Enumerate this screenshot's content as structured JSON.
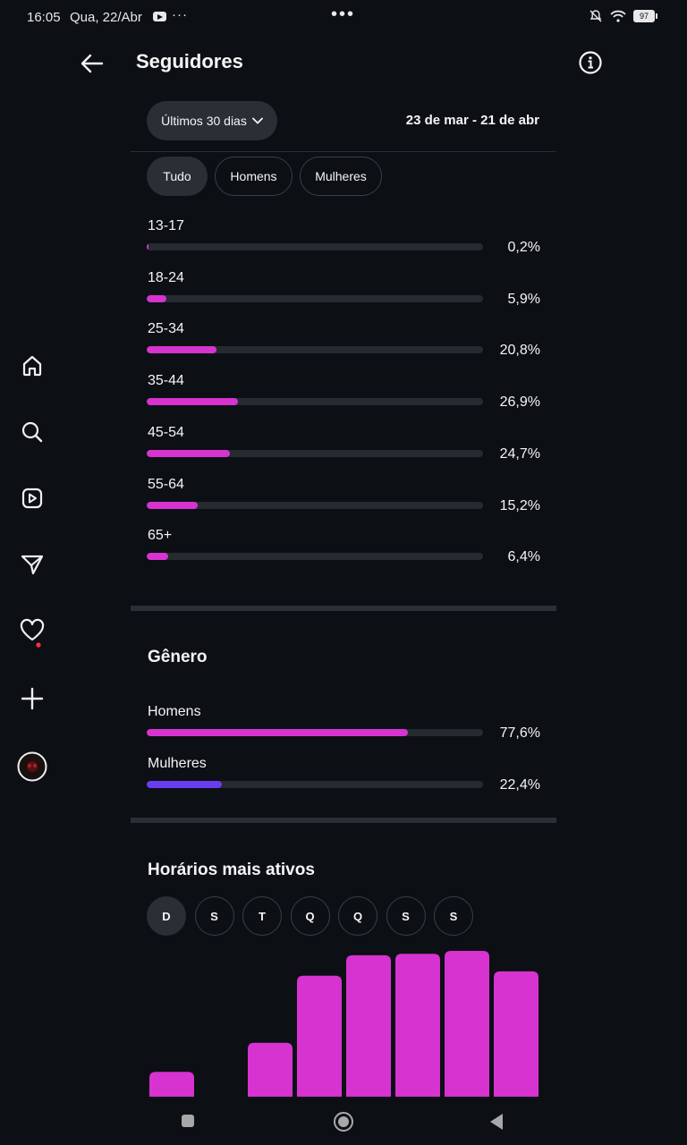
{
  "status_bar": {
    "time": "16:05",
    "date": "Qua, 22/Abr",
    "notification_dots": "···",
    "center_dots": "•••",
    "battery": "97"
  },
  "header": {
    "title": "Seguidores"
  },
  "filters": {
    "period_label": "Últimos 30 dias",
    "date_range": "23 de mar - 21 de abr",
    "tabs": [
      "Tudo",
      "Homens",
      "Mulheres"
    ],
    "active_tab": "Tudo"
  },
  "age_ranges": [
    {
      "label": "13-17",
      "percent_text": "0,2%",
      "value": 0.2
    },
    {
      "label": "18-24",
      "percent_text": "5,9%",
      "value": 5.9
    },
    {
      "label": "25-34",
      "percent_text": "20,8%",
      "value": 20.8
    },
    {
      "label": "35-44",
      "percent_text": "26,9%",
      "value": 26.9
    },
    {
      "label": "45-54",
      "percent_text": "24,7%",
      "value": 24.7
    },
    {
      "label": "55-64",
      "percent_text": "15,2%",
      "value": 15.2
    },
    {
      "label": "65+",
      "percent_text": "6,4%",
      "value": 6.4
    }
  ],
  "gender": {
    "title": "Gênero",
    "items": [
      {
        "label": "Homens",
        "percent_text": "77,6%",
        "value": 77.6,
        "color": "#d633d0"
      },
      {
        "label": "Mulheres",
        "percent_text": "22,4%",
        "value": 22.4,
        "color": "#6a3cf0"
      }
    ]
  },
  "active_hours": {
    "title": "Horários mais ativos",
    "days": [
      "D",
      "S",
      "T",
      "Q",
      "Q",
      "S",
      "S"
    ],
    "active_day_index": 0
  },
  "chart_data": {
    "type": "bar",
    "relative_values": [
      17,
      0,
      37,
      83,
      97,
      98,
      100,
      86
    ],
    "color": "#d633d0"
  },
  "colors": {
    "background": "#0c0f14",
    "accent": "#d633d0",
    "secondary": "#6a3cf0",
    "track": "#262a31"
  }
}
